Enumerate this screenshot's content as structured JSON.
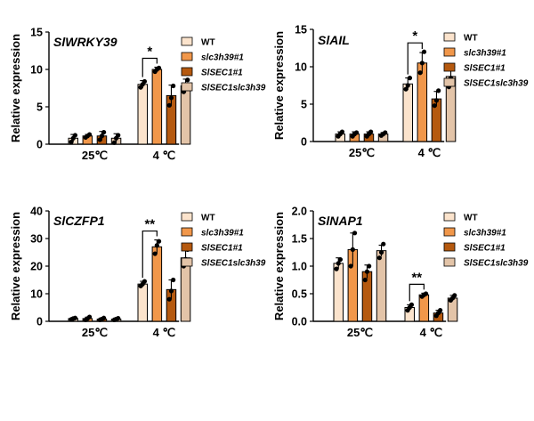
{
  "chart_data": [
    {
      "type": "bar",
      "title": "SlWRKY39",
      "xlabel": "",
      "ylabel": "Relative expression",
      "ylim": [
        0,
        15
      ],
      "yticks": [
        0,
        5,
        10,
        15
      ],
      "categories": [
        "25℃",
        "4 ℃"
      ],
      "series": [
        {
          "name": "WT",
          "values": [
            0.8,
            8.0
          ],
          "errors": [
            0.5,
            0.5
          ],
          "points": [
            [
              0.3,
              0.8,
              1.2
            ],
            [
              7.6,
              8.0,
              8.4
            ]
          ]
        },
        {
          "name": "slc3h39#1",
          "values": [
            1.1,
            10.0
          ],
          "errors": [
            0.2,
            0.3
          ],
          "points": [
            [
              0.9,
              1.1,
              1.3
            ],
            [
              9.7,
              10.0,
              10.2
            ]
          ]
        },
        {
          "name": "SlSEC1#1",
          "values": [
            1.1,
            6.5
          ],
          "errors": [
            0.6,
            1.4
          ],
          "points": [
            [
              0.6,
              1.1,
              1.6
            ],
            [
              5.2,
              6.2,
              7.8
            ]
          ]
        },
        {
          "name": "SlSEC1slc3h39",
          "values": [
            0.8,
            7.8
          ],
          "errors": [
            0.6,
            0.9
          ],
          "points": [
            [
              0.2,
              0.8,
              1.2
            ],
            [
              7.0,
              7.6,
              8.6
            ]
          ]
        }
      ],
      "significance": [
        {
          "category": "4 ℃",
          "from": "WT",
          "to": "slc3h39#1",
          "label": "*"
        }
      ]
    },
    {
      "type": "bar",
      "title": "SlAIL",
      "xlabel": "",
      "ylabel": "Relative expression",
      "ylim": [
        0,
        15
      ],
      "yticks": [
        0,
        5,
        10,
        15
      ],
      "categories": [
        "25℃",
        "4 ℃"
      ],
      "series": [
        {
          "name": "WT",
          "values": [
            1.0,
            7.7
          ],
          "errors": [
            0.3,
            0.8
          ],
          "points": [
            [
              0.7,
              1.0,
              1.3
            ],
            [
              7.0,
              7.5,
              8.5
            ]
          ]
        },
        {
          "name": "slc3h39#1",
          "values": [
            1.0,
            10.5
          ],
          "errors": [
            0.3,
            1.4
          ],
          "points": [
            [
              0.7,
              1.0,
              1.2
            ],
            [
              9.2,
              10.5,
              12.0
            ]
          ]
        },
        {
          "name": "SlSEC1#1",
          "values": [
            1.0,
            5.7
          ],
          "errors": [
            0.3,
            1.0
          ],
          "points": [
            [
              0.7,
              1.0,
              1.3
            ],
            [
              4.8,
              5.5,
              6.8
            ]
          ]
        },
        {
          "name": "SlSEC1slc3h39",
          "values": [
            1.0,
            8.7
          ],
          "errors": [
            0.2,
            1.4
          ],
          "points": [
            [
              0.8,
              1.0,
              1.2
            ],
            [
              7.3,
              8.5,
              10.0
            ]
          ]
        }
      ],
      "significance": [
        {
          "category": "4 ℃",
          "from": "WT",
          "to": "slc3h39#1",
          "label": "*"
        }
      ]
    },
    {
      "type": "bar",
      "title": "SlCZFP1",
      "xlabel": "",
      "ylabel": "Relative expression",
      "ylim": [
        0,
        40
      ],
      "yticks": [
        0,
        10,
        20,
        30,
        40
      ],
      "categories": [
        "25℃",
        "4 ℃"
      ],
      "series": [
        {
          "name": "WT",
          "values": [
            1.0,
            13.5
          ],
          "errors": [
            0.3,
            1.0
          ],
          "points": [
            [
              0.7,
              1.0,
              1.2
            ],
            [
              12.8,
              13.5,
              14.5
            ]
          ]
        },
        {
          "name": "slc3h39#1",
          "values": [
            1.0,
            27.0
          ],
          "errors": [
            0.5,
            2.5
          ],
          "points": [
            [
              0.5,
              1.0,
              1.6
            ],
            [
              24.5,
              27.5,
              29.0
            ]
          ]
        },
        {
          "name": "SlSEC1#1",
          "values": [
            0.8,
            11.5
          ],
          "errors": [
            0.4,
            3.5
          ],
          "points": [
            [
              0.5,
              0.8,
              1.2
            ],
            [
              8.0,
              11.0,
              15.0
            ]
          ]
        },
        {
          "name": "SlSEC1slc3h39",
          "values": [
            0.8,
            23.0
          ],
          "errors": [
            0.4,
            3.0
          ],
          "points": [
            [
              0.5,
              0.8,
              1.1
            ],
            [
              20.0,
              22.5,
              26.0
            ]
          ]
        }
      ],
      "significance": [
        {
          "category": "4 ℃",
          "from": "WT",
          "to": "slc3h39#1",
          "label": "**"
        }
      ]
    },
    {
      "type": "bar",
      "title": "SlNAP1",
      "xlabel": "",
      "ylabel": "Relative expression",
      "ylim": [
        0,
        2.0
      ],
      "yticks": [
        0.0,
        0.5,
        1.0,
        1.5,
        2.0
      ],
      "categories": [
        "25℃",
        "4 ℃"
      ],
      "series": [
        {
          "name": "WT",
          "values": [
            1.05,
            0.25
          ],
          "errors": [
            0.1,
            0.05
          ],
          "points": [
            [
              0.95,
              1.05,
              1.12
            ],
            [
              0.2,
              0.25,
              0.3
            ]
          ]
        },
        {
          "name": "slc3h39#1",
          "values": [
            1.3,
            0.48
          ],
          "errors": [
            0.3,
            0.03
          ],
          "points": [
            [
              1.0,
              1.3,
              1.6
            ],
            [
              0.45,
              0.48,
              0.5
            ]
          ]
        },
        {
          "name": "SlSEC1#1",
          "values": [
            0.9,
            0.15
          ],
          "errors": [
            0.12,
            0.05
          ],
          "points": [
            [
              0.75,
              0.9,
              1.0
            ],
            [
              0.1,
              0.15,
              0.2
            ]
          ]
        },
        {
          "name": "SlSEC1slc3h39",
          "values": [
            1.28,
            0.42
          ],
          "errors": [
            0.1,
            0.05
          ],
          "points": [
            [
              1.15,
              1.25,
              1.4
            ],
            [
              0.38,
              0.42,
              0.47
            ]
          ]
        }
      ],
      "significance": [
        {
          "category": "4 ℃",
          "from": "WT",
          "to": "slc3h39#1",
          "label": "**"
        }
      ]
    }
  ],
  "legend": {
    "entries": [
      {
        "name": "WT",
        "italic": false
      },
      {
        "name": "slc3h39#1",
        "italic": true
      },
      {
        "name": "SlSEC1#1",
        "italic": true
      },
      {
        "name": "SlSEC1slc3h39",
        "italic": true
      }
    ]
  },
  "colors": {
    "WT": "#fbe3cc",
    "slc3h39#1": "#f1974a",
    "SlSEC1#1": "#b5590f",
    "SlSEC1slc3h39": "#e3c4a8"
  }
}
